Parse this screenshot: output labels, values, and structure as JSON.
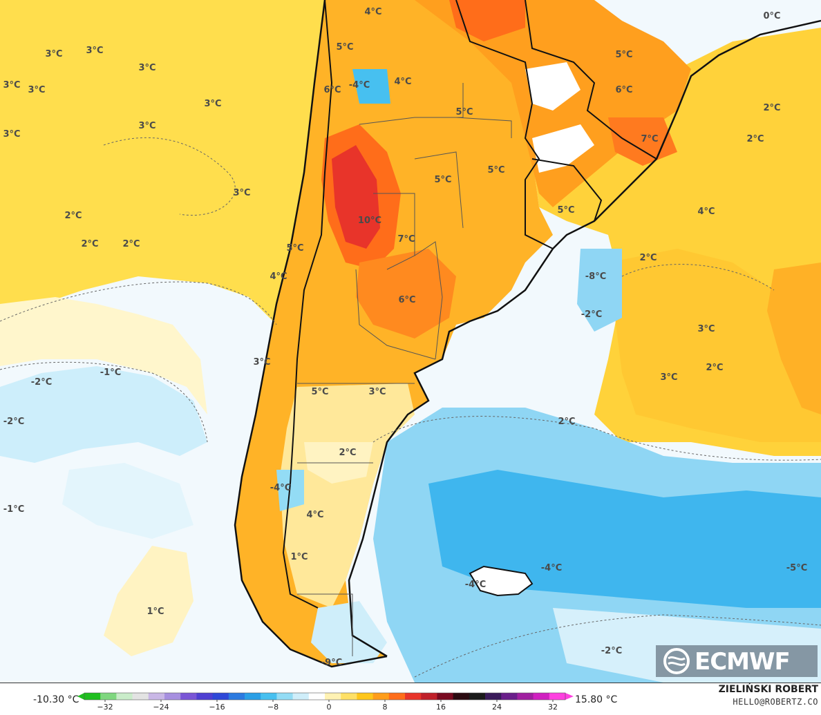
{
  "map": {
    "labels": [
      {
        "t": "4°C"
      },
      {
        "t": "0°C"
      },
      {
        "t": "5°C"
      },
      {
        "t": "5°C"
      },
      {
        "t": "3°C"
      },
      {
        "t": "3°C"
      },
      {
        "t": "3°C"
      },
      {
        "t": "3°C"
      },
      {
        "t": "3°C"
      },
      {
        "t": "6°C"
      },
      {
        "t": "-4°C"
      },
      {
        "t": "4°C"
      },
      {
        "t": "6°C"
      },
      {
        "t": "3°C"
      },
      {
        "t": "5°C"
      },
      {
        "t": "2°C"
      },
      {
        "t": "3°C"
      },
      {
        "t": "3°C"
      },
      {
        "t": "7°C"
      },
      {
        "t": "2°C"
      },
      {
        "t": "5°C"
      },
      {
        "t": "5°C"
      },
      {
        "t": "3°C"
      },
      {
        "t": "4°C"
      },
      {
        "t": "2°C"
      },
      {
        "t": "5°C"
      },
      {
        "t": "10°C"
      },
      {
        "t": "2°C"
      },
      {
        "t": "2°C"
      },
      {
        "t": "7°C"
      },
      {
        "t": "5°C"
      },
      {
        "t": "2°C"
      },
      {
        "t": "-8°C"
      },
      {
        "t": "4°C"
      },
      {
        "t": "6°C"
      },
      {
        "t": "-2°C"
      },
      {
        "t": "3°C"
      },
      {
        "t": "3°C"
      },
      {
        "t": "-1°C"
      },
      {
        "t": "-2°C"
      },
      {
        "t": "2°C"
      },
      {
        "t": "3°C"
      },
      {
        "t": "5°C"
      },
      {
        "t": "3°C"
      },
      {
        "t": "-2°C"
      },
      {
        "t": "2°C"
      },
      {
        "t": "2°C"
      },
      {
        "t": "-4°C"
      },
      {
        "t": "-1°C"
      },
      {
        "t": "4°C"
      },
      {
        "t": "1°C"
      },
      {
        "t": "-4°C"
      },
      {
        "t": "-5°C"
      },
      {
        "t": "-4°C"
      },
      {
        "t": "1°C"
      },
      {
        "t": "-2°C"
      },
      {
        "t": "-9°C"
      }
    ]
  },
  "legend": {
    "min_label": "-10.30 °C",
    "max_label": "15.80 °C",
    "ticks": [
      "−32",
      "−24",
      "−16",
      "−8",
      "0",
      "8",
      "16",
      "24",
      "32"
    ],
    "colors": [
      "#1fbf1f",
      "#7fd77f",
      "#c9ecc9",
      "#e3e3e3",
      "#c9b7e6",
      "#a78fe0",
      "#7a55d6",
      "#4f3fd2",
      "#2f48d8",
      "#2c7ae0",
      "#2a9fe6",
      "#47c0f0",
      "#93dcf5",
      "#cfeefa",
      "#ffffff",
      "#fff2b3",
      "#ffe066",
      "#ffc61a",
      "#ff9d1a",
      "#ff6d1a",
      "#e8342a",
      "#c0202a",
      "#7a0a20",
      "#2b0a10",
      "#1a1a1a",
      "#3a1a5a",
      "#6a1f8a",
      "#a020a0",
      "#d020c0",
      "#ff40e0"
    ]
  },
  "credit": {
    "name": "ZIELIŃSKI ROBERT",
    "email": "HELLO@ROBERTZ.CO"
  },
  "logo": {
    "text": "ECMWF"
  }
}
